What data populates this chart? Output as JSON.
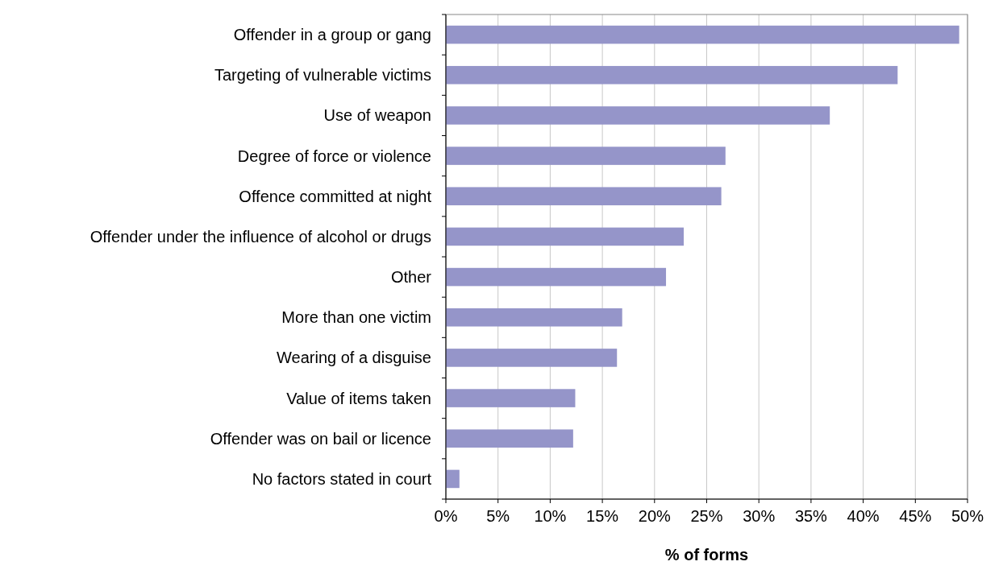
{
  "chart_data": {
    "type": "bar",
    "orientation": "horizontal",
    "xlabel": "% of forms",
    "categories": [
      "Offender in a group or gang",
      "Targeting of vulnerable victims",
      "Use of weapon",
      "Degree of force or violence",
      "Offence committed at night",
      "Offender under the influence of alcohol or drugs",
      "Other",
      "More than one victim",
      "Wearing of a disguise",
      "Value of items taken",
      "Offender was on bail or licence",
      "No factors stated in court"
    ],
    "values": [
      49.2,
      43.3,
      36.8,
      26.8,
      26.4,
      22.8,
      21.1,
      16.9,
      16.4,
      12.4,
      12.2,
      1.3
    ],
    "color": "#9595c9",
    "xlim": [
      0,
      50
    ],
    "xticks": [
      {
        "value": 0,
        "label": "0%"
      },
      {
        "value": 5,
        "label": "5%"
      },
      {
        "value": 10,
        "label": "10%"
      },
      {
        "value": 15,
        "label": "15%"
      },
      {
        "value": 20,
        "label": "20%"
      },
      {
        "value": 25,
        "label": "25%"
      },
      {
        "value": 30,
        "label": "30%"
      },
      {
        "value": 35,
        "label": "35%"
      },
      {
        "value": 40,
        "label": "40%"
      },
      {
        "value": 45,
        "label": "45%"
      },
      {
        "value": 50,
        "label": "50%"
      }
    ],
    "grid": "x"
  }
}
